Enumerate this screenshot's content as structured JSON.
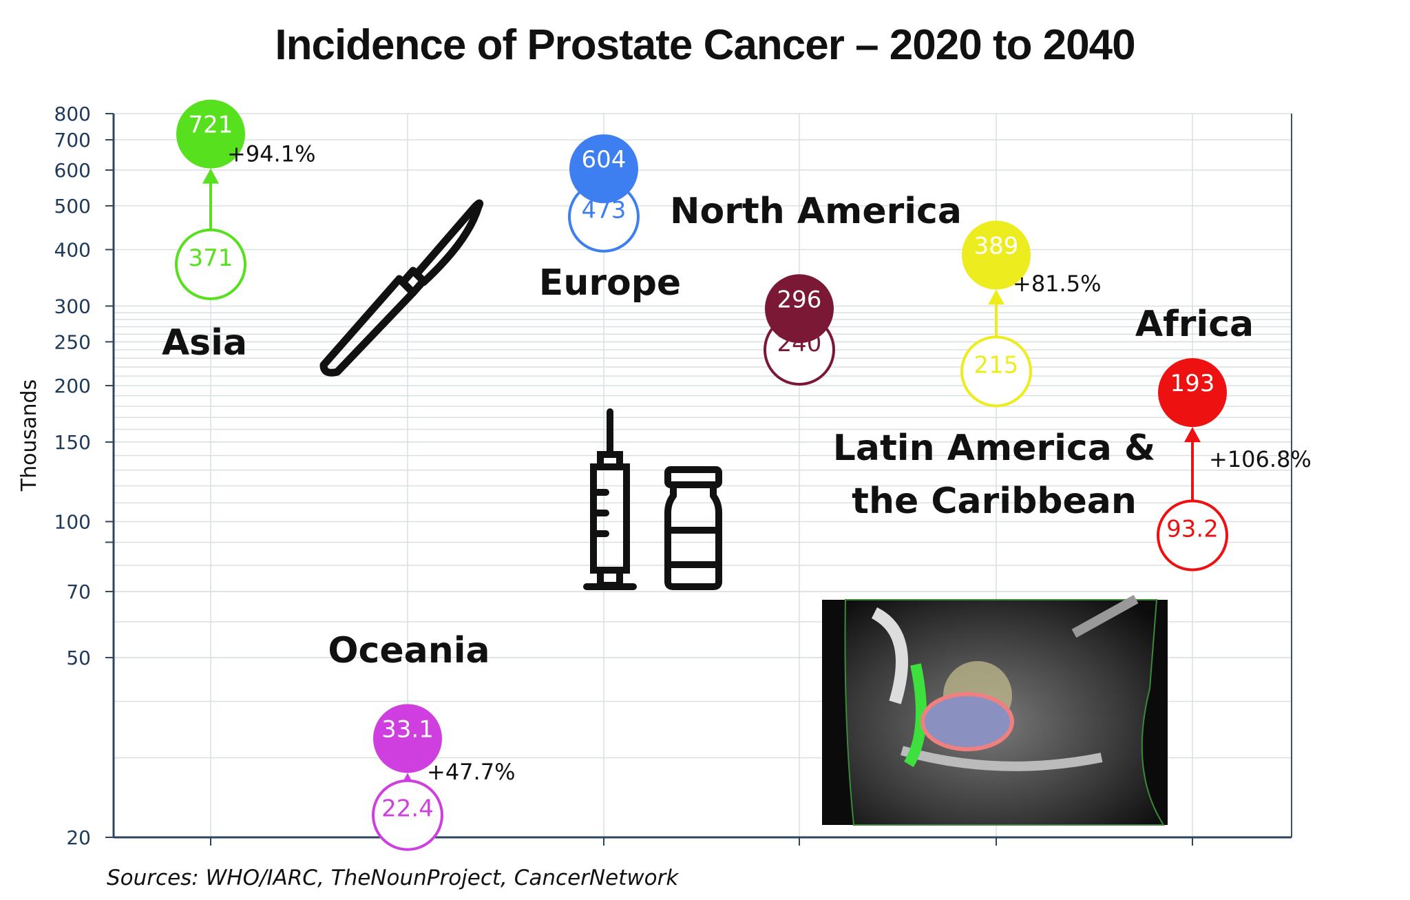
{
  "chart_data": {
    "type": "scatter",
    "title": "Incidence of Prostate Cancer – 2020 to 2040",
    "ylabel": "Thousands",
    "xlabel": "",
    "y_scale": "log",
    "ylim": [
      20,
      800
    ],
    "y_ticks": [
      20,
      50,
      70,
      100,
      150,
      200,
      250,
      300,
      400,
      500,
      600,
      700,
      800
    ],
    "grid": true,
    "series": [
      {
        "region": "Asia",
        "value_2020": 371,
        "value_2040": 721,
        "value_2020_label": "371",
        "value_2040_label": "721",
        "change": "+94.1%",
        "color": "#57e01d"
      },
      {
        "region": "Oceania",
        "value_2020": 22.4,
        "value_2040": 33.1,
        "value_2020_label": "22.4",
        "value_2040_label": "33.1",
        "change": "+47.7%",
        "color": "#cf3fe0"
      },
      {
        "region": "Europe",
        "value_2020": 473,
        "value_2040": 604,
        "value_2020_label": "473",
        "value_2040_label": "604",
        "change": "",
        "color": "#3d7ef0"
      },
      {
        "region": "North America",
        "value_2020": 240,
        "value_2040": 296,
        "value_2020_label": "240",
        "value_2040_label": "296",
        "change": "",
        "color": "#7a1836"
      },
      {
        "region": "Latin America & the Caribbean",
        "value_2020": 215,
        "value_2040": 389,
        "value_2020_label": "215",
        "value_2040_label": "389",
        "change": "+81.5%",
        "color": "#ecec1e"
      },
      {
        "region": "Africa",
        "value_2020": 93.2,
        "value_2040": 193,
        "value_2020_label": "93.2",
        "value_2040_label": "193",
        "change": "+106.8%",
        "color": "#ee1111"
      }
    ]
  },
  "labels": {
    "asia": "Asia",
    "europe": "Europe",
    "north_america": "North America",
    "latin_line1": "Latin America &",
    "latin_line2": "the Caribbean",
    "africa": "Africa",
    "oceania": "Oceania"
  },
  "icons": [
    "scalpel-icon",
    "syringe-icon",
    "vial-icon",
    "ct-scan-image"
  ],
  "sources": "Sources: WHO/IARC, TheNounProject, CancerNetwork"
}
